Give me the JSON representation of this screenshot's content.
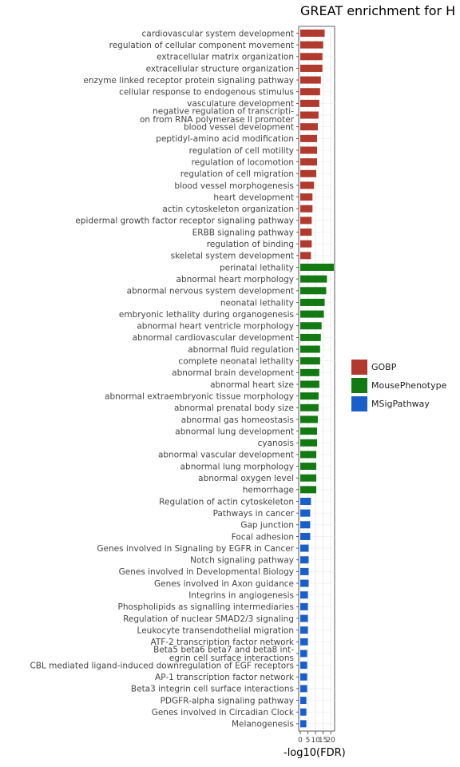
{
  "chart_data": {
    "type": "bar",
    "orientation": "horizontal",
    "title": "GREAT enrichment for H",
    "xlabel": "-log10(FDR)",
    "ylabel": "",
    "x_ticks": [
      0,
      5,
      10,
      15,
      20
    ],
    "xlim": [
      0,
      22
    ],
    "grid": true,
    "legend_position": "right",
    "colors": {
      "GOBP": "#B03A2E",
      "MousePhenotype": "#137A13",
      "MSigPathway": "#1A5FC8"
    },
    "series": [
      {
        "name": "GOBP",
        "color": "#B03A2E"
      },
      {
        "name": "MousePhenotype",
        "color": "#137A13"
      },
      {
        "name": "MSigPathway",
        "color": "#1A5FC8"
      }
    ],
    "bars": [
      {
        "label": "cardiovascular system development",
        "value": 16,
        "series": "GOBP"
      },
      {
        "label": "regulation of cellular component movement",
        "value": 15,
        "series": "GOBP"
      },
      {
        "label": "extracellular matrix organization",
        "value": 14.5,
        "series": "GOBP"
      },
      {
        "label": "extracellular structure organization",
        "value": 14.5,
        "series": "GOBP"
      },
      {
        "label": "enzyme linked receptor protein signaling pathway",
        "value": 13.5,
        "series": "GOBP"
      },
      {
        "label": "cellular response to endogenous stimulus",
        "value": 13,
        "series": "GOBP"
      },
      {
        "label": "vasculature development",
        "value": 12.5,
        "series": "GOBP"
      },
      {
        "label": "negative regulation of transcripti-\non from RNA polymerase II promoter",
        "value": 12,
        "series": "GOBP"
      },
      {
        "label": "blood vessel development",
        "value": 11.5,
        "series": "GOBP"
      },
      {
        "label": "peptidyl-amino acid modification",
        "value": 11,
        "series": "GOBP"
      },
      {
        "label": "regulation of cell motility",
        "value": 11,
        "series": "GOBP"
      },
      {
        "label": "regulation of locomotion",
        "value": 11,
        "series": "GOBP"
      },
      {
        "label": "regulation of cell migration",
        "value": 10.5,
        "series": "GOBP"
      },
      {
        "label": "blood vessel morphogenesis",
        "value": 9,
        "series": "GOBP"
      },
      {
        "label": "heart development",
        "value": 8,
        "series": "GOBP"
      },
      {
        "label": "actin cytoskeleton organization",
        "value": 8,
        "series": "GOBP"
      },
      {
        "label": "epidermal growth factor receptor signaling pathway",
        "value": 7.5,
        "series": "GOBP"
      },
      {
        "label": "ERBB signaling pathway",
        "value": 7.5,
        "series": "GOBP"
      },
      {
        "label": "regulation of binding",
        "value": 7.5,
        "series": "GOBP"
      },
      {
        "label": "skeletal system development",
        "value": 7,
        "series": "GOBP"
      },
      {
        "label": "perinatal lethality",
        "value": 22,
        "series": "MousePhenotype"
      },
      {
        "label": "abnormal heart morphology",
        "value": 17.5,
        "series": "MousePhenotype"
      },
      {
        "label": "abnormal nervous system development",
        "value": 17,
        "series": "MousePhenotype"
      },
      {
        "label": "neonatal lethality",
        "value": 16,
        "series": "MousePhenotype"
      },
      {
        "label": "embryonic lethality during organogenesis",
        "value": 15.5,
        "series": "MousePhenotype"
      },
      {
        "label": "abnormal heart ventricle morphology",
        "value": 14,
        "series": "MousePhenotype"
      },
      {
        "label": "abnormal cardiovascular development",
        "value": 13.5,
        "series": "MousePhenotype"
      },
      {
        "label": "abnormal fluid regulation",
        "value": 13,
        "series": "MousePhenotype"
      },
      {
        "label": "complete neonatal lethality",
        "value": 13,
        "series": "MousePhenotype"
      },
      {
        "label": "abnormal brain development",
        "value": 12.5,
        "series": "MousePhenotype"
      },
      {
        "label": "abnormal heart size",
        "value": 12.5,
        "series": "MousePhenotype"
      },
      {
        "label": "abnormal extraembryonic tissue morphology",
        "value": 12,
        "series": "MousePhenotype"
      },
      {
        "label": "abnormal prenatal body size",
        "value": 12,
        "series": "MousePhenotype"
      },
      {
        "label": "abnormal gas homeostasis",
        "value": 11.5,
        "series": "MousePhenotype"
      },
      {
        "label": "abnormal lung development",
        "value": 11,
        "series": "MousePhenotype"
      },
      {
        "label": "cyanosis",
        "value": 11,
        "series": "MousePhenotype"
      },
      {
        "label": "abnormal vascular development",
        "value": 10.5,
        "series": "MousePhenotype"
      },
      {
        "label": "abnormal lung morphology",
        "value": 10.5,
        "series": "MousePhenotype"
      },
      {
        "label": "abnormal oxygen level",
        "value": 10.5,
        "series": "MousePhenotype"
      },
      {
        "label": "hemorrhage",
        "value": 10.5,
        "series": "MousePhenotype"
      },
      {
        "label": "Regulation of actin cytoskeleton",
        "value": 7,
        "series": "MSigPathway"
      },
      {
        "label": "Pathways in cancer",
        "value": 6.5,
        "series": "MSigPathway"
      },
      {
        "label": "Gap junction",
        "value": 6.5,
        "series": "MSigPathway"
      },
      {
        "label": "Focal adhesion",
        "value": 6.5,
        "series": "MSigPathway"
      },
      {
        "label": "Genes involved in Signaling by EGFR in Cancer",
        "value": 5.5,
        "series": "MSigPathway"
      },
      {
        "label": "Notch signaling pathway",
        "value": 5.5,
        "series": "MSigPathway"
      },
      {
        "label": "Genes involved in Developmental Biology",
        "value": 5.5,
        "series": "MSigPathway"
      },
      {
        "label": "Genes involved in Axon guidance",
        "value": 5.5,
        "series": "MSigPathway"
      },
      {
        "label": "Integrins in angiogenesis",
        "value": 5,
        "series": "MSigPathway"
      },
      {
        "label": "Phospholipids as signalling intermediaries",
        "value": 5,
        "series": "MSigPathway"
      },
      {
        "label": "Regulation of nuclear SMAD2/3 signaling",
        "value": 5,
        "series": "MSigPathway"
      },
      {
        "label": "Leukocyte transendothelial migration",
        "value": 5,
        "series": "MSigPathway"
      },
      {
        "label": "ATF-2 transcription factor network",
        "value": 5,
        "series": "MSigPathway"
      },
      {
        "label": "Beta5 beta6 beta7 and beta8 int-\negrin cell surface interactions",
        "value": 4.5,
        "series": "MSigPathway"
      },
      {
        "label": "CBL mediated ligand-induced downregulation of EGF receptors",
        "value": 4.5,
        "series": "MSigPathway"
      },
      {
        "label": "AP-1 transcription factor network",
        "value": 4.5,
        "series": "MSigPathway"
      },
      {
        "label": "Beta3 integrin cell surface interactions",
        "value": 4.5,
        "series": "MSigPathway"
      },
      {
        "label": "PDGFR-alpha signaling pathway",
        "value": 4,
        "series": "MSigPathway"
      },
      {
        "label": "Genes involved in Circadian Clock",
        "value": 4,
        "series": "MSigPathway"
      },
      {
        "label": "Melanogenesis",
        "value": 4,
        "series": "MSigPathway"
      }
    ]
  }
}
